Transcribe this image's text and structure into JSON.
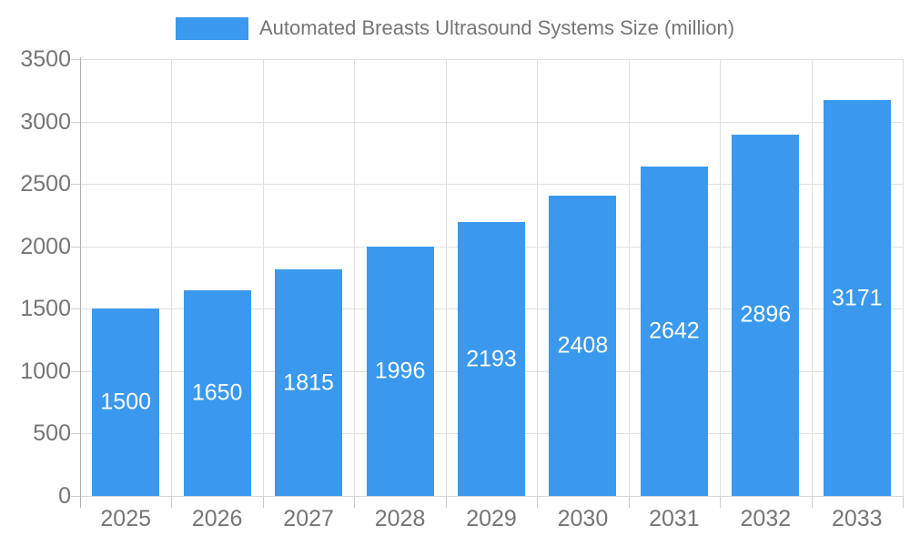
{
  "legend": {
    "label": "Automated Breasts Ultrasound Systems Size (million)",
    "swatch_color": "#3a99ee"
  },
  "chart_data": {
    "type": "bar",
    "title": "Automated Breasts Ultrasound Systems Size (million)",
    "categories": [
      "2025",
      "2026",
      "2027",
      "2028",
      "2029",
      "2030",
      "2031",
      "2032",
      "2033"
    ],
    "values": [
      1500,
      1650,
      1815,
      1996,
      2193,
      2408,
      2642,
      2896,
      3171
    ],
    "xlabel": "",
    "ylabel": "",
    "ylim": [
      0,
      3500
    ],
    "yticks": [
      0,
      500,
      1000,
      1500,
      2000,
      2500,
      3000,
      3500
    ],
    "grid": true,
    "legend_position": "top-center",
    "bar_color": "#3a99ee",
    "value_label_color": "#ffffff",
    "axis_text_color": "#757575",
    "gridline_color": "#e0e0e0"
  }
}
